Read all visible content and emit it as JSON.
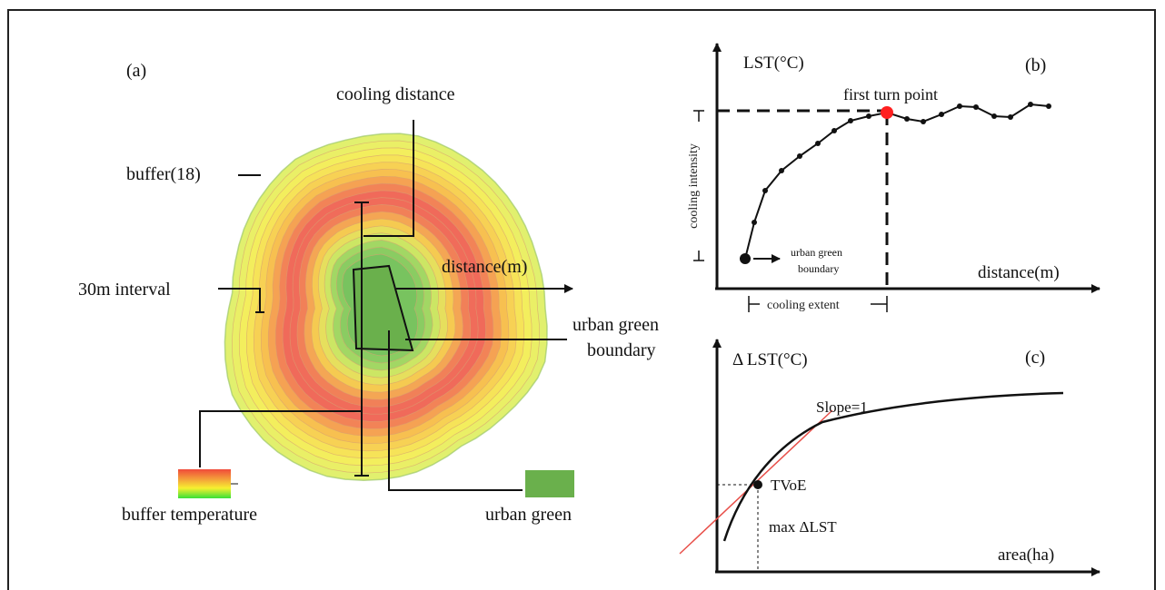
{
  "panel_a": {
    "label": "(a)",
    "cooling_distance": "cooling distance",
    "buffer": "buffer(18)",
    "interval": "30m interval",
    "distance": "distance(m)",
    "boundary_line1": "urban green",
    "boundary_line2": "boundary",
    "legend_temperature": "buffer temperature",
    "legend_green": "urban green",
    "ring_count": 18,
    "colors": {
      "urban_green": "#6ab04c",
      "hot": "#f0604c",
      "warm": "#f7c948",
      "cool": "#e6f060"
    }
  },
  "panel_b": {
    "label": "(b)",
    "ylabel": "LST(°C)",
    "xlabel": "distance(m)",
    "turn_point": "first turn point",
    "intensity": "cooling intensity",
    "extent": "cooling extent",
    "start_line1": "urban green",
    "start_line2": "boundary",
    "turn_color": "#ff2020"
  },
  "panel_c": {
    "label": "(c)",
    "ylabel": "Δ LST(°C)",
    "xlabel": "area(ha)",
    "slope": "Slope=1",
    "tvoe": "TVoE",
    "max": "max ΔLST",
    "slope_color": "#e8504a"
  }
}
